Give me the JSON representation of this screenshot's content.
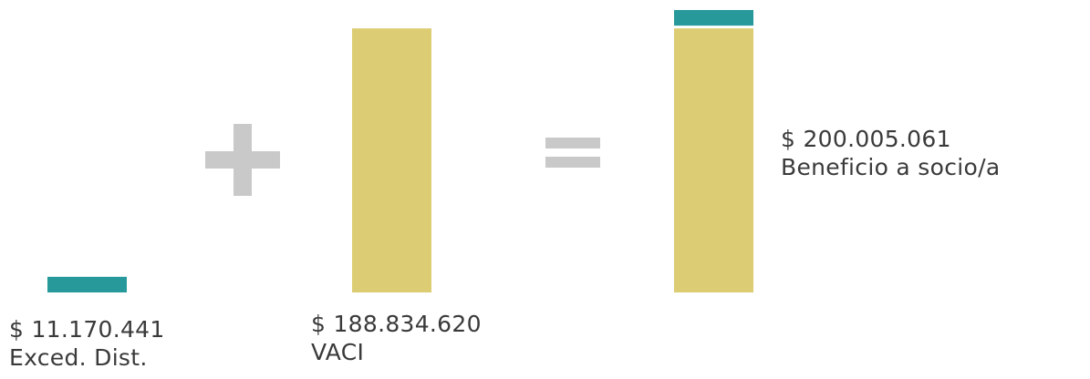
{
  "colors": {
    "excedentes": "#27999B",
    "vaci": "#DCCC73",
    "operator": "#C9C9C9",
    "text": "#3A3A3A"
  },
  "operators": {
    "plus": "+",
    "equals": "="
  },
  "chart_data": {
    "type": "bar",
    "categories": [
      "Exced. Dist.",
      "VACI",
      "Beneficio a socio/a"
    ],
    "series": [
      {
        "values": [
          11170441,
          0,
          11170441
        ]
      },
      {
        "values": [
          0,
          188834620,
          188834620
        ]
      }
    ],
    "labels": {
      "excedentes": {
        "amount": "$ 11.170.441",
        "name": "Exced. Dist."
      },
      "vaci": {
        "amount": "$ 188.834.620",
        "name": "VACI"
      },
      "total": {
        "amount": "$ 200.005.061",
        "name": "Beneficio a socio/a"
      }
    },
    "ylim": [
      0,
      200005061
    ],
    "grid": false,
    "legend": "none"
  }
}
